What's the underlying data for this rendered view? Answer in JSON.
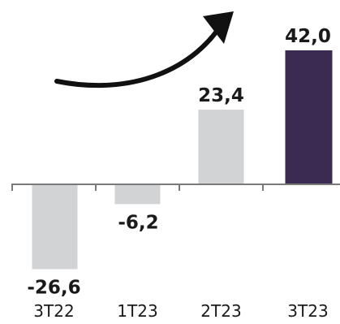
{
  "chart_data": {
    "type": "bar",
    "categories": [
      "3T22",
      "1T23",
      "2T23",
      "3T23"
    ],
    "values": [
      -26.6,
      -6.2,
      23.4,
      42.0
    ],
    "value_labels": [
      "-26,6",
      "-6,2",
      "23,4",
      "42,0"
    ],
    "title": "",
    "xlabel": "",
    "ylabel": "",
    "ylim": [
      -28,
      48
    ],
    "grid": false,
    "legend": "none",
    "colors": {
      "default_bar": "#d1d3d4",
      "highlight_bar": "#3b2a52",
      "axis": "#7a7a7a",
      "arrow": "#111111"
    },
    "highlight_index": 3,
    "annotations": [
      {
        "kind": "trend-arrow",
        "icon": "curved-up-arrow-icon"
      }
    ]
  }
}
